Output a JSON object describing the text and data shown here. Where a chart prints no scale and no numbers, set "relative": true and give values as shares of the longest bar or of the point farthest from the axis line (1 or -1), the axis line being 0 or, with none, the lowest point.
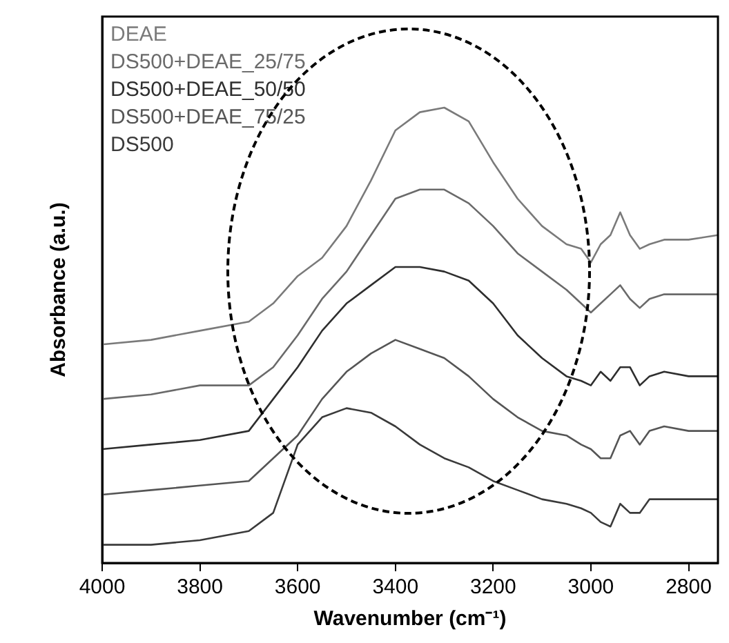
{
  "chart_data": {
    "type": "line",
    "relative": true,
    "xlabel": "Wavenumber (cm⁻¹)",
    "ylabel": "Absorbance (a.u.)",
    "x": [
      4000,
      3900,
      3800,
      3700,
      3650,
      3600,
      3550,
      3500,
      3450,
      3400,
      3350,
      3300,
      3250,
      3200,
      3150,
      3100,
      3050,
      3020,
      3000,
      2980,
      2960,
      2940,
      2920,
      2900,
      2880,
      2850,
      2800,
      2740
    ],
    "xlim": [
      4000,
      2740
    ],
    "xticks": [
      4000,
      3800,
      3600,
      3400,
      3200,
      3000,
      2800
    ],
    "grid": false,
    "legend": "top left",
    "marker": "none",
    "line_style": "solid",
    "series": [
      {
        "name": "DEAE",
        "color": "#7a7a7a",
        "values": [
          0.48,
          0.49,
          0.51,
          0.53,
          0.57,
          0.63,
          0.67,
          0.74,
          0.84,
          0.95,
          0.99,
          1,
          0.97,
          0.88,
          0.8,
          0.74,
          0.7,
          0.69,
          0.66,
          0.7,
          0.72,
          0.77,
          0.72,
          0.69,
          0.7,
          0.71,
          0.71,
          0.72
        ]
      },
      {
        "name": "DS500+DEAE_25/75",
        "color": "#6a6a6a",
        "values": [
          0.36,
          0.37,
          0.39,
          0.39,
          0.43,
          0.5,
          0.58,
          0.64,
          0.72,
          0.8,
          0.82,
          0.82,
          0.79,
          0.74,
          0.68,
          0.64,
          0.6,
          0.57,
          0.55,
          0.57,
          0.59,
          0.61,
          0.58,
          0.56,
          0.58,
          0.59,
          0.59,
          0.59
        ]
      },
      {
        "name": "DS500+DEAE_50/50",
        "color": "#2e2e2e",
        "values": [
          0.25,
          0.26,
          0.27,
          0.29,
          0.36,
          0.43,
          0.51,
          0.57,
          0.61,
          0.65,
          0.65,
          0.64,
          0.62,
          0.57,
          0.5,
          0.45,
          0.41,
          0.4,
          0.39,
          0.42,
          0.4,
          0.43,
          0.43,
          0.39,
          0.41,
          0.42,
          0.41,
          0.41
        ]
      },
      {
        "name": "DS500+DEAE_75/25",
        "color": "#555555",
        "values": [
          0.15,
          0.16,
          0.17,
          0.18,
          0.23,
          0.28,
          0.36,
          0.42,
          0.46,
          0.49,
          0.47,
          0.45,
          0.41,
          0.36,
          0.32,
          0.29,
          0.28,
          0.26,
          0.25,
          0.23,
          0.23,
          0.28,
          0.29,
          0.26,
          0.29,
          0.3,
          0.29,
          0.29
        ]
      },
      {
        "name": "DS500",
        "color": "#3a3a3a",
        "values": [
          0.04,
          0.04,
          0.05,
          0.07,
          0.11,
          0.26,
          0.32,
          0.34,
          0.33,
          0.3,
          0.26,
          0.23,
          0.21,
          0.18,
          0.16,
          0.14,
          0.13,
          0.12,
          0.11,
          0.09,
          0.08,
          0.13,
          0.11,
          0.11,
          0.14,
          0.14,
          0.14,
          0.14
        ]
      }
    ]
  }
}
